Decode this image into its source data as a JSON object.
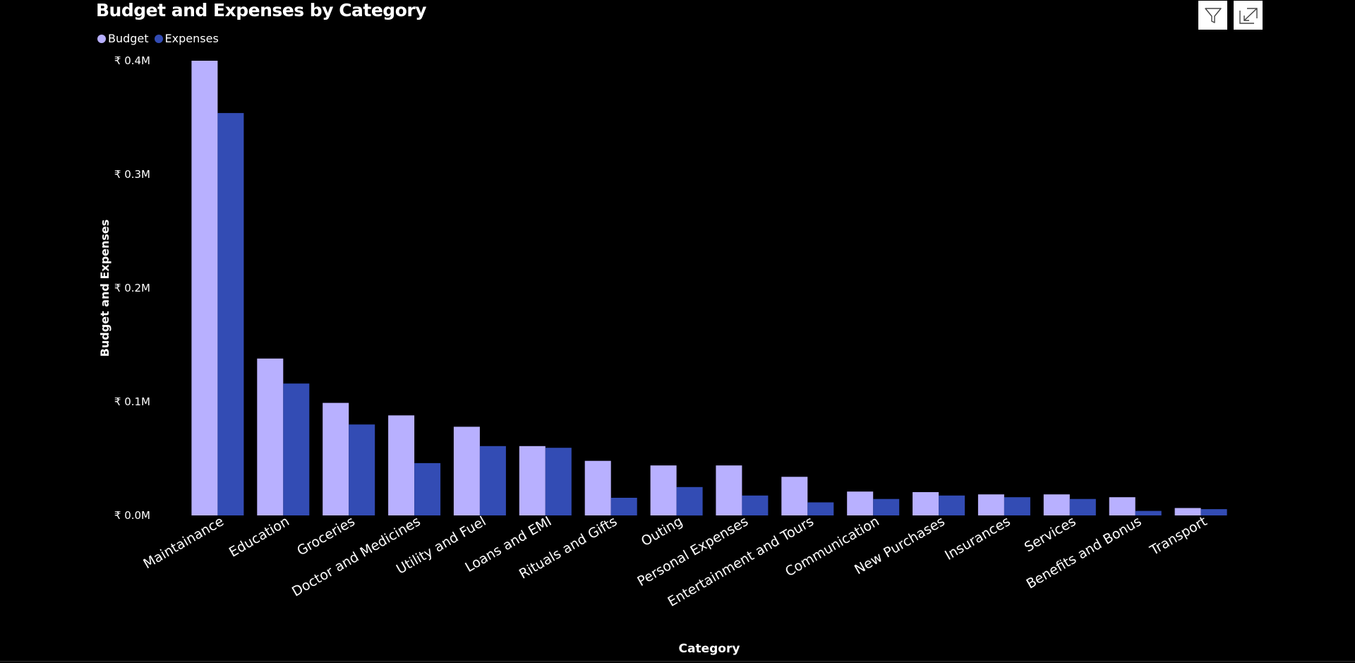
{
  "title": "Budget and Expenses by Category",
  "legend": [
    {
      "name": "Budget",
      "color": "#b8b0ff"
    },
    {
      "name": "Expenses",
      "color": "#334cb4"
    }
  ],
  "toolbar": {
    "filter_icon": "filter-icon",
    "focus_icon": "focus-mode-icon"
  },
  "chart_data": {
    "type": "bar",
    "title": "Budget and Expenses by Category",
    "xlabel": "Category",
    "ylabel": "Budget and Expenses",
    "ylim": [
      0,
      400000
    ],
    "yticks": [
      0,
      100000,
      200000,
      300000,
      400000
    ],
    "ytick_labels": [
      "₹ 0.0M",
      "₹ 0.1M",
      "₹ 0.2M",
      "₹ 0.3M",
      "₹ 0.4M"
    ],
    "grid": false,
    "legend_position": "top-left",
    "categories": [
      "Maintainance",
      "Education",
      "Groceries",
      "Doctor and Medicines",
      "Utility and Fuel",
      "Loans and EMI",
      "Rituals and Gifts",
      "Outing",
      "Personal Expenses",
      "Entertainment and Tours",
      "Communication",
      "New Purchases",
      "Insurances",
      "Services",
      "Benefits and Bonus",
      "Transport"
    ],
    "series": [
      {
        "name": "Budget",
        "color": "#b8b0ff",
        "values": [
          400000,
          138000,
          99000,
          88000,
          78000,
          61000,
          48000,
          44000,
          44000,
          34000,
          21000,
          20500,
          18500,
          18500,
          16000,
          6500
        ]
      },
      {
        "name": "Expenses",
        "color": "#334cb4",
        "values": [
          354000,
          116000,
          80000,
          46000,
          61000,
          59500,
          15500,
          25000,
          17500,
          11500,
          14500,
          17500,
          16000,
          14500,
          4000,
          5500
        ]
      }
    ]
  }
}
